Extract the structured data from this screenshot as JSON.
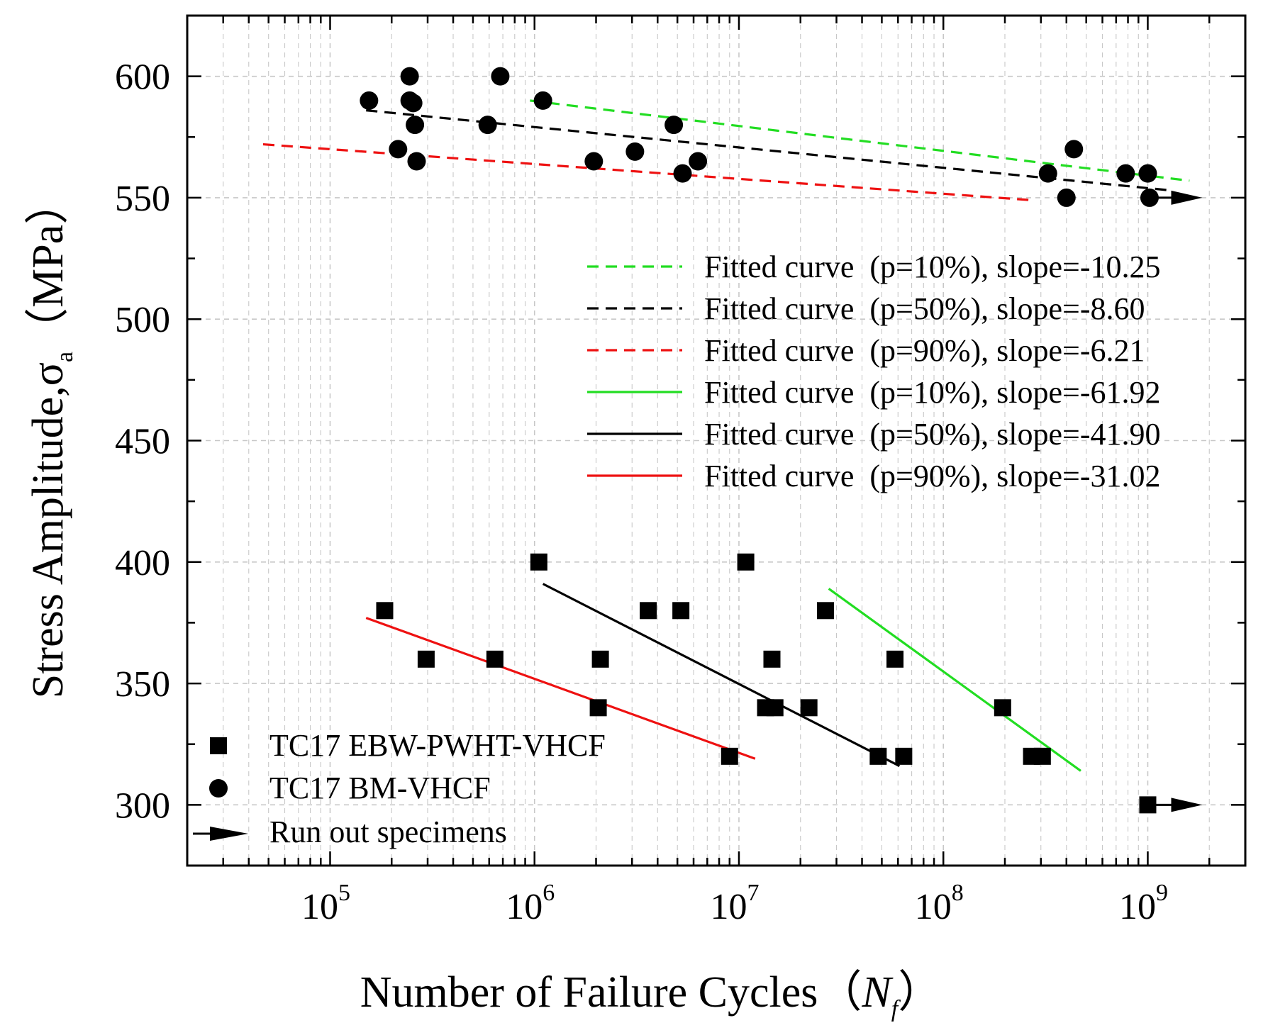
{
  "chart_data": {
    "type": "scatter",
    "title": "",
    "x_scale": "log",
    "xlim": [
      20000,
      3000000000
    ],
    "ylim": [
      275,
      625
    ],
    "grid": true,
    "x_ticks": [
      {
        "exp": 5,
        "base": "10",
        "sup": "5"
      },
      {
        "exp": 6,
        "base": "10",
        "sup": "6"
      },
      {
        "exp": 7,
        "base": "10",
        "sup": "7"
      },
      {
        "exp": 8,
        "base": "10",
        "sup": "8"
      },
      {
        "exp": 9,
        "base": "10",
        "sup": "9"
      }
    ],
    "y_ticks": [
      {
        "value": 300,
        "label": "300"
      },
      {
        "value": 350,
        "label": "350"
      },
      {
        "value": 400,
        "label": "400"
      },
      {
        "value": 450,
        "label": "450"
      },
      {
        "value": 500,
        "label": "500"
      },
      {
        "value": 550,
        "label": "550"
      },
      {
        "value": 600,
        "label": "600"
      }
    ],
    "xlabel": {
      "main": "Number of Failure Cycles（",
      "var": "N",
      "sub": "f",
      "close": "）"
    },
    "ylabel": {
      "main": "Stress Amplitude,σ",
      "sub": "a",
      "rest": "（MPa）"
    },
    "series": [
      {
        "name": "TC17 EBW-PWHT-VHCF",
        "marker": "square",
        "color": "#000000",
        "points": [
          [
            1050000.0,
            400
          ],
          [
            10800000.0,
            400
          ],
          [
            185000.0,
            380
          ],
          [
            3600000.0,
            380
          ],
          [
            5200000.0,
            380
          ],
          [
            26500000.0,
            380
          ],
          [
            295000.0,
            360
          ],
          [
            640000.0,
            360
          ],
          [
            2100000.0,
            360
          ],
          [
            14500000.0,
            360
          ],
          [
            58000000.0,
            360
          ],
          [
            2050000.0,
            340
          ],
          [
            13500000.0,
            340
          ],
          [
            15000000.0,
            340
          ],
          [
            22000000.0,
            340
          ],
          [
            195000000.0,
            340
          ],
          [
            9000000.0,
            320
          ],
          [
            48000000.0,
            320
          ],
          [
            64000000.0,
            320
          ],
          [
            270000000.0,
            320
          ],
          [
            305000000.0,
            320
          ],
          [
            1000000000.0,
            300
          ]
        ]
      },
      {
        "name": "TC17 BM-VHCF",
        "marker": "circle",
        "color": "#000000",
        "points": [
          [
            245000.0,
            600
          ],
          [
            680000.0,
            600
          ],
          [
            155000.0,
            590
          ],
          [
            245000.0,
            590
          ],
          [
            255000.0,
            589
          ],
          [
            1100000.0,
            590
          ],
          [
            260000.0,
            580
          ],
          [
            590000.0,
            580
          ],
          [
            4800000.0,
            580
          ],
          [
            215000.0,
            570
          ],
          [
            3100000.0,
            569
          ],
          [
            435000000.0,
            570
          ],
          [
            265000.0,
            565
          ],
          [
            1950000.0,
            565
          ],
          [
            6300000.0,
            565
          ],
          [
            5300000.0,
            560
          ],
          [
            325000000.0,
            560
          ],
          [
            780000000.0,
            560
          ],
          [
            1000000000.0,
            560
          ],
          [
            400000000.0,
            550
          ],
          [
            1020000000.0,
            550
          ]
        ]
      }
    ],
    "runouts": [
      {
        "from": [
          1050000000.0,
          550
        ],
        "to": [
          1850000000.0,
          550
        ]
      },
      {
        "from": [
          1050000000.0,
          300
        ],
        "to": [
          1850000000.0,
          300
        ]
      }
    ],
    "fitted_curves": [
      {
        "name": "Fitted curve  (p=10%), slope=-10.25",
        "color": "#22dd22",
        "style": "dashed",
        "from": [
          950000.0,
          590
        ],
        "to": [
          1600000000.0,
          557
        ]
      },
      {
        "name": "Fitted curve  (p=50%), slope=-8.60",
        "color": "#000000",
        "style": "dashed",
        "from": [
          150000.0,
          586
        ],
        "to": [
          1300000000.0,
          553
        ]
      },
      {
        "name": "Fitted curve  (p=90%), slope=-6.21",
        "color": "#ee1111",
        "style": "dashed",
        "from": [
          47000.0,
          572
        ],
        "to": [
          270000000.0,
          549
        ]
      },
      {
        "name": "Fitted curve  (p=10%), slope=-61.92",
        "color": "#22dd22",
        "style": "solid",
        "from": [
          27500000.0,
          389
        ],
        "to": [
          470000000.0,
          314
        ]
      },
      {
        "name": "Fitted curve  (p=50%), slope=-41.90",
        "color": "#000000",
        "style": "solid",
        "from": [
          1100000.0,
          391
        ],
        "to": [
          61000000.0,
          316
        ]
      },
      {
        "name": "Fitted curve  (p=90%), slope=-31.02",
        "color": "#ee1111",
        "style": "solid",
        "from": [
          150000.0,
          377
        ],
        "to": [
          12000000.0,
          319
        ]
      }
    ],
    "legend_runout_label": "Run out specimens"
  }
}
